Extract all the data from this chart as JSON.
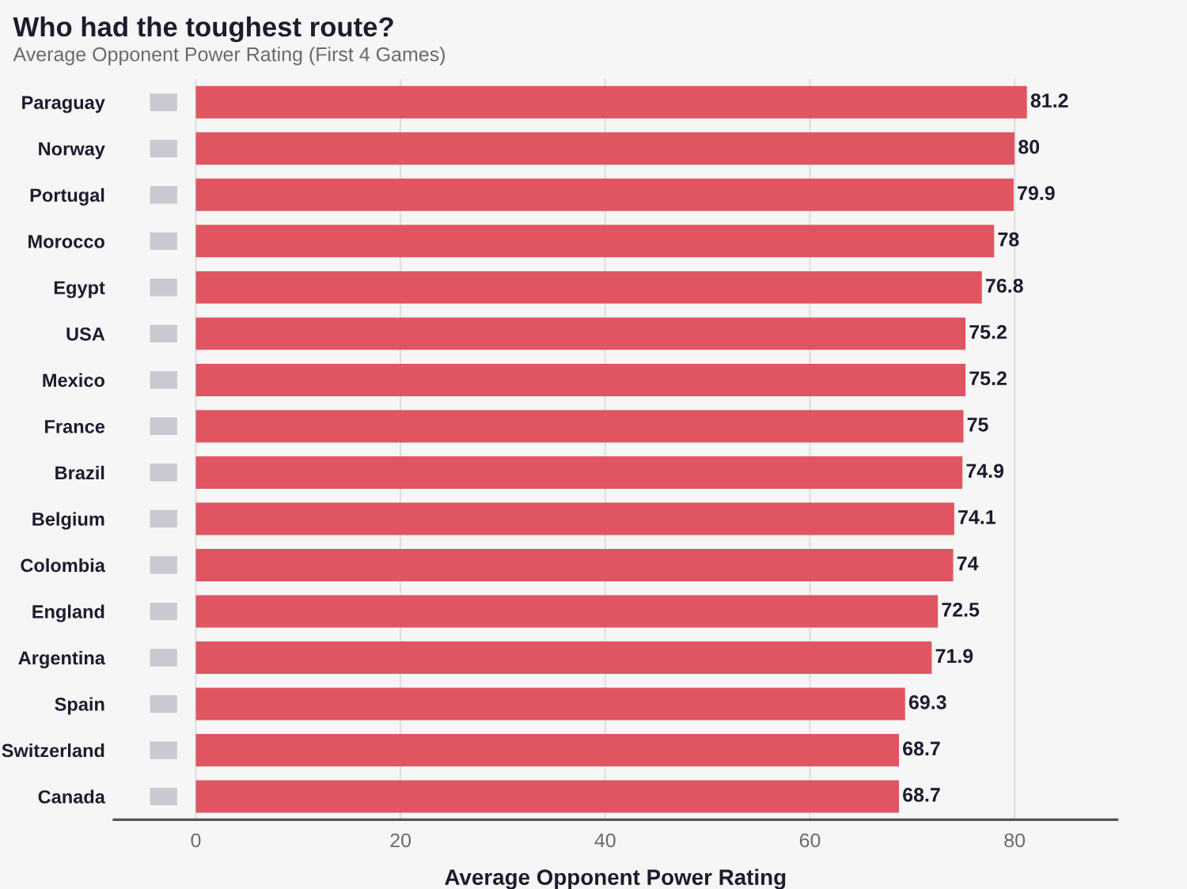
{
  "chart_data": {
    "type": "bar",
    "orientation": "horizontal",
    "title": "Who had the toughest route?",
    "subtitle": "Average Opponent Power Rating (First 4 Games)",
    "xlabel": "Average Opponent Power Rating",
    "categories": [
      "Paraguay",
      "Norway",
      "Portugal",
      "Morocco",
      "Egypt",
      "USA",
      "Mexico",
      "France",
      "Brazil",
      "Belgium",
      "Colombia",
      "England",
      "Argentina",
      "Spain",
      "Switzerland",
      "Canada"
    ],
    "values": [
      81.2,
      80,
      79.9,
      78,
      76.8,
      75.2,
      75.2,
      75,
      74.9,
      74.1,
      74,
      72.5,
      71.9,
      69.3,
      68.7,
      68.7
    ],
    "color": "#e05561",
    "xlim": [
      -8,
      90
    ],
    "xticks": [
      0,
      20,
      40,
      60,
      80
    ],
    "grid": "x",
    "data_labels": true
  }
}
